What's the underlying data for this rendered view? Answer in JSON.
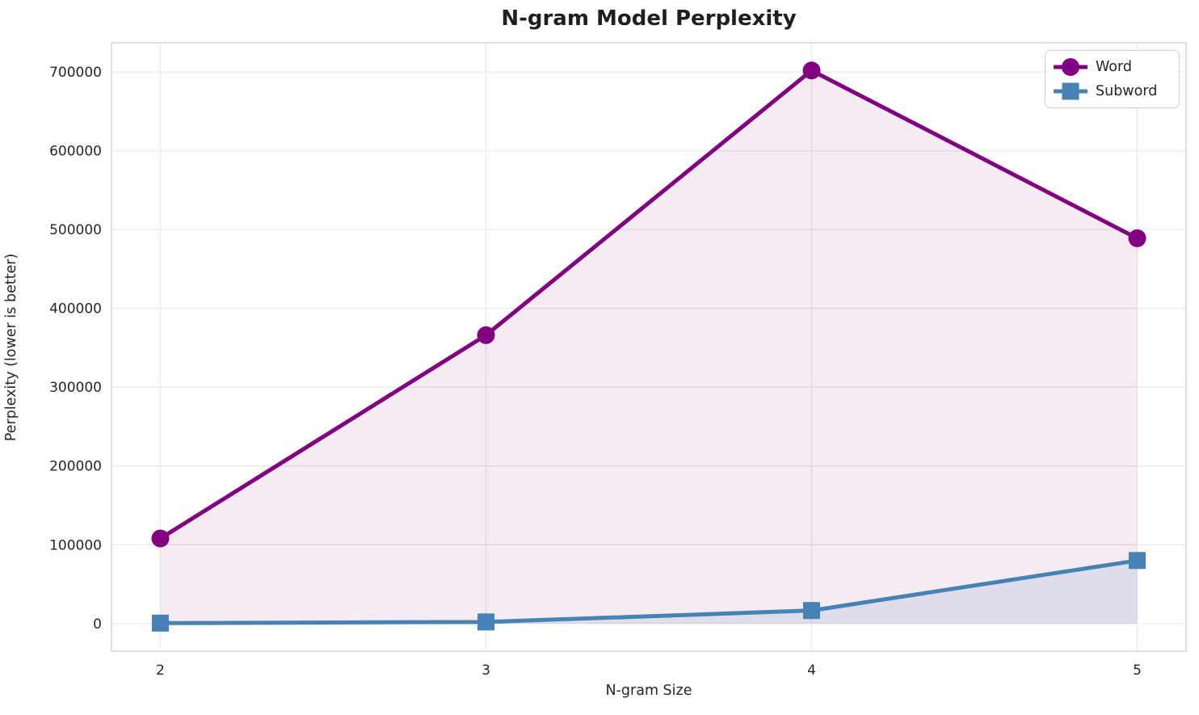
{
  "chart_data": {
    "type": "line",
    "title": "N-gram Model Perplexity",
    "xlabel": "N-gram Size",
    "ylabel": "Perplexity (lower is better)",
    "x": [
      2,
      3,
      4,
      5
    ],
    "xticks": [
      "2",
      "3",
      "4",
      "5"
    ],
    "yticks": [
      0,
      100000,
      200000,
      300000,
      400000,
      500000,
      600000,
      700000
    ],
    "xlim": [
      1.85,
      5.15
    ],
    "ylim": [
      -35100,
      737100
    ],
    "grid": true,
    "legend_position": "upper right",
    "series": [
      {
        "name": "Word",
        "color": "#800080",
        "marker": "circle",
        "line_width": 5,
        "fill_to_zero": true,
        "fill_opacity": 0.08,
        "values": [
          108000,
          366000,
          702000,
          489000
        ]
      },
      {
        "name": "Subword",
        "color": "#4682B4",
        "marker": "square",
        "line_width": 5,
        "fill_to_zero": true,
        "fill_opacity": 0.13,
        "values": [
          500,
          2000,
          16500,
          80000
        ]
      }
    ],
    "colors": {
      "grid": "#eaeaea",
      "spine": "#d4d4d4",
      "text": "#262626",
      "background": "#ffffff"
    }
  }
}
